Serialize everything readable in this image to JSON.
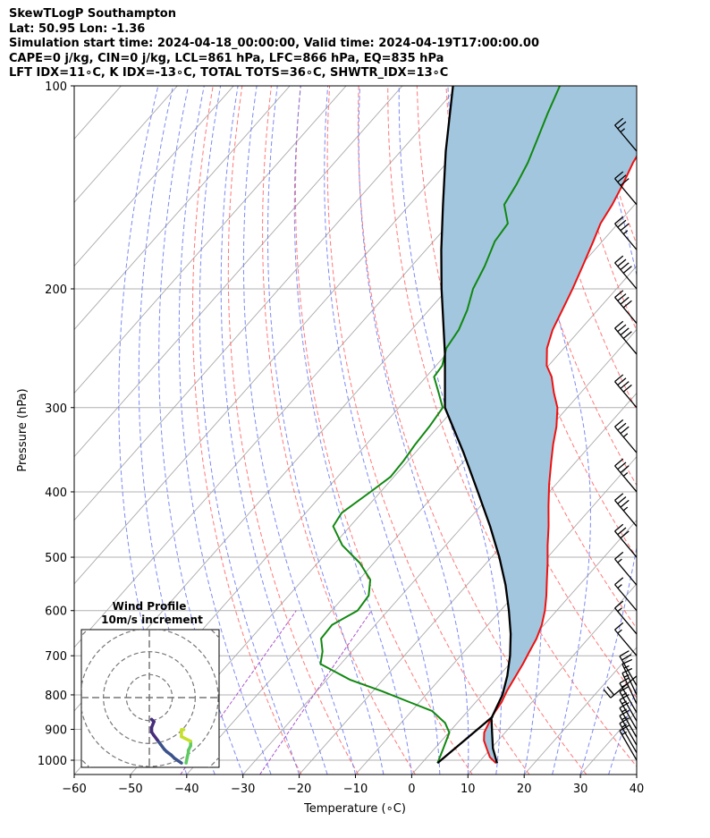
{
  "header": {
    "line1": "SkewTLogP Southampton",
    "line2": "Lat: 50.95   Lon: -1.36",
    "line3": "Simulation start time: 2024-04-18_00:00:00, Valid time: 2024-04-19T17:00:00.00",
    "line4": "CAPE=0 j/kg, CIN=0 j/kg, LCL=861 hPa, LFC=866 hPa, EQ=835 hPa",
    "line5": "LFT IDX=11∘C, K IDX=-13∘C, TOTAL TOTS=36∘C, SHWTR_IDX=13∘C"
  },
  "colors": {
    "temperature": "#ee1111",
    "dewpoint": "#118811",
    "parcel": "#000000",
    "cape_fill": "#a3c6df",
    "dry_adiabat": "#ff6060",
    "moist_adiabat": "#6677ee",
    "mixing_ratio": "#aa55cc",
    "isotherm": "#aaaaaa"
  },
  "chart_data": {
    "type": "line",
    "xlabel": "Temperature (∘C)",
    "ylabel": "Pressure (hPa)",
    "xlim": [
      -60,
      40
    ],
    "ylim": [
      1050,
      100
    ],
    "y_scale": "log",
    "x_ticks": [
      -60,
      -50,
      -40,
      -30,
      -20,
      -10,
      0,
      10,
      20,
      30,
      40
    ],
    "x_tick_labels": [
      "−60",
      "−50",
      "−40",
      "−30",
      "−20",
      "−10",
      "0",
      "10",
      "20",
      "30",
      "40"
    ],
    "y_ticks": [
      100,
      200,
      300,
      400,
      500,
      600,
      700,
      800,
      900,
      1000
    ],
    "y_tick_labels": [
      "100",
      "200",
      "300",
      "400",
      "500",
      "600",
      "700",
      "800",
      "900",
      "1000"
    ],
    "grid": true,
    "series": [
      {
        "role": "temperature",
        "pressure": [
          1010,
          990,
          960,
          935,
          910,
          880,
          862,
          845,
          820,
          790,
          760,
          720,
          690,
          660,
          630,
          600,
          570,
          540,
          510,
          480,
          450,
          420,
          390,
          360,
          340,
          320,
          300,
          285,
          270,
          260,
          245,
          230,
          215,
          200,
          185,
          170,
          160,
          150,
          140,
          130,
          120,
          110,
          100
        ],
        "values": [
          13.2,
          11.2,
          9.2,
          7.5,
          6.3,
          5.6,
          5.2,
          4.9,
          4.6,
          3.8,
          3.2,
          2.4,
          1.6,
          0.8,
          -0.4,
          -2.1,
          -4.2,
          -6.6,
          -9.1,
          -11.9,
          -14.7,
          -17.9,
          -21.2,
          -24.5,
          -26.8,
          -29.0,
          -31.8,
          -34.8,
          -37.7,
          -40.3,
          -43.0,
          -44.9,
          -46.3,
          -47.8,
          -49.6,
          -51.6,
          -53.1,
          -54.0,
          -55.3,
          -56.9,
          -58.1,
          -59.9,
          -61.7
        ]
      },
      {
        "role": "dewpoint",
        "pressure": [
          1010,
          960,
          910,
          880,
          845,
          820,
          790,
          760,
          720,
          690,
          660,
          630,
          600,
          570,
          540,
          510,
          480,
          450,
          430,
          400,
          380,
          360,
          340,
          320,
          300,
          285,
          270,
          260,
          245,
          230,
          215,
          200,
          185,
          170,
          160,
          150,
          140,
          130,
          120,
          110,
          100
        ],
        "values": [
          2.8,
          1.5,
          0.1,
          -2.2,
          -6.4,
          -11.8,
          -18.4,
          -25.8,
          -33.6,
          -35.2,
          -37.5,
          -37.7,
          -35.4,
          -35.8,
          -38.0,
          -42.5,
          -48.4,
          -53.0,
          -53.6,
          -51.8,
          -50.6,
          -50.8,
          -51.3,
          -51.6,
          -52.2,
          -55.3,
          -58.6,
          -58.9,
          -60.9,
          -61.6,
          -63.2,
          -65.5,
          -67.0,
          -69.1,
          -69.6,
          -73.2,
          -74.2,
          -75.6,
          -77.6,
          -79.8,
          -82.0
        ]
      },
      {
        "role": "parcel",
        "pressure": [
          1010,
          960,
          910,
          866,
          800,
          750,
          700,
          650,
          600,
          550,
          500,
          450,
          400,
          350,
          300,
          250,
          200,
          175,
          150,
          125,
          100
        ],
        "values": [
          13.4,
          10.3,
          7.7,
          5.3,
          3.6,
          1.5,
          -1.2,
          -4.5,
          -8.5,
          -13.1,
          -18.6,
          -25.1,
          -32.7,
          -41.4,
          -51.8,
          -60.2,
          -71.1,
          -77.3,
          -84.1,
          -92.0,
          -101.0
        ]
      }
    ],
    "annotations": [
      {
        "role": "lcl",
        "pressure": 861
      },
      {
        "role": "lfc",
        "pressure": 866
      },
      {
        "role": "eq",
        "pressure": 835
      }
    ],
    "shaded_area": "cape",
    "wind_barbs": {
      "pressure": [
        1000,
        975,
        950,
        925,
        900,
        875,
        850,
        825,
        800,
        775,
        750,
        700,
        650,
        600,
        550,
        500,
        450,
        400,
        350,
        300,
        250,
        225,
        200,
        175,
        150,
        125,
        100
      ],
      "speed_kt": [
        15,
        15,
        15,
        15,
        15,
        15,
        15,
        15,
        15,
        20,
        20,
        15,
        15,
        15,
        15,
        30,
        35,
        35,
        35,
        40,
        40,
        40,
        40,
        35,
        30,
        25,
        20
      ],
      "direction_deg": [
        330,
        330,
        330,
        330,
        330,
        330,
        330,
        335,
        335,
        330,
        230,
        320,
        320,
        320,
        320,
        320,
        320,
        320,
        320,
        320,
        320,
        320,
        320,
        320,
        320,
        320,
        320
      ]
    }
  },
  "hodograph": {
    "title": "Wind Profile",
    "subtitle": "10m/s increment",
    "rings_ms": [
      10,
      20,
      30,
      40
    ],
    "limits_ms": [
      -30,
      30
    ],
    "points": [
      {
        "u": 16,
        "v": -28.5
      },
      {
        "u": 16.5,
        "v": -26
      },
      {
        "u": 17,
        "v": -24
      },
      {
        "u": 17,
        "v": -23
      },
      {
        "u": 18,
        "v": -21
      },
      {
        "u": 18,
        "v": -19
      },
      {
        "u": 14,
        "v": -17
      },
      {
        "u": 14,
        "v": -15
      },
      {
        "u": 14,
        "v": -14
      },
      {
        "u": 15,
        "v": -14
      },
      {
        "u": 14,
        "v": -28.5
      },
      {
        "u": 12.5,
        "v": -27.5
      },
      {
        "u": 11,
        "v": -26.5
      },
      {
        "u": 9.5,
        "v": -25
      },
      {
        "u": 7.5,
        "v": -23.5
      },
      {
        "u": 6.5,
        "v": -22.5
      },
      {
        "u": 5,
        "v": -20.5
      },
      {
        "u": 3.5,
        "v": -18.5
      },
      {
        "u": 2,
        "v": -16.5
      },
      {
        "u": 1,
        "v": -15
      },
      {
        "u": 1,
        "v": -13
      },
      {
        "u": 2,
        "v": -10.5
      },
      {
        "u": 1,
        "v": -9.5
      }
    ]
  }
}
